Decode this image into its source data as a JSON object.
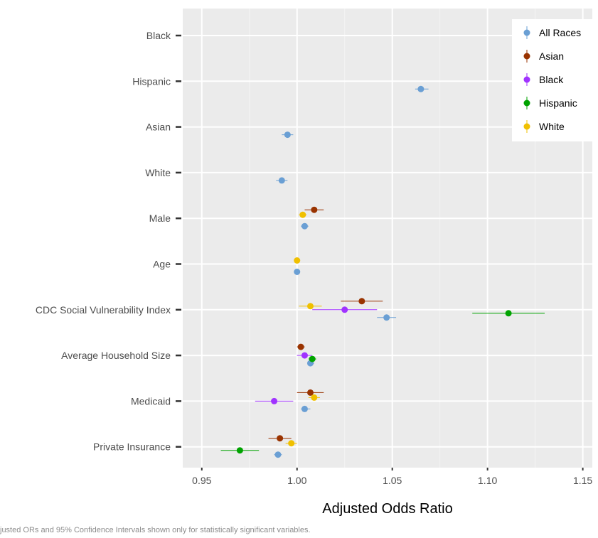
{
  "chart_data": {
    "type": "scatter",
    "subtype": "forest-plot",
    "xlabel": "Adjusted Odds Ratio",
    "ylabel": "",
    "xlim": [
      0.94,
      1.155
    ],
    "xticks": [
      "0.95",
      "1.00",
      "1.05",
      "1.10",
      "1.15"
    ],
    "xtick_values": [
      0.95,
      1.0,
      1.05,
      1.1,
      1.15
    ],
    "categories": [
      "Black",
      "Hispanic",
      "Asian",
      "White",
      "Male",
      "Age",
      "CDC Social Vulnerability Index",
      "Average Household Size",
      "Medicaid",
      "Private Insurance"
    ],
    "grid": true,
    "legend_position": "top-right",
    "series": [
      {
        "name": "All Races",
        "color": "#6a9fd4",
        "points": [
          {
            "category": "Hispanic",
            "or": 1.065,
            "lo": 1.062,
            "hi": 1.069
          },
          {
            "category": "Asian",
            "or": 0.995,
            "lo": 0.992,
            "hi": 0.998
          },
          {
            "category": "White",
            "or": 0.992,
            "lo": 0.989,
            "hi": 0.995
          },
          {
            "category": "Male",
            "or": 1.004,
            "lo": 1.002,
            "hi": 1.006
          },
          {
            "category": "Age",
            "or": 1.0,
            "lo": 0.999,
            "hi": 1.001
          },
          {
            "category": "CDC Social Vulnerability Index",
            "or": 1.047,
            "lo": 1.042,
            "hi": 1.052
          },
          {
            "category": "Average Household Size",
            "or": 1.007,
            "lo": 1.006,
            "hi": 1.009
          },
          {
            "category": "Medicaid",
            "or": 1.004,
            "lo": 1.002,
            "hi": 1.007
          },
          {
            "category": "Private Insurance",
            "or": 0.99,
            "lo": 0.988,
            "hi": 0.992
          }
        ]
      },
      {
        "name": "Asian",
        "color": "#993300",
        "points": [
          {
            "category": "Male",
            "or": 1.009,
            "lo": 1.004,
            "hi": 1.014
          },
          {
            "category": "CDC Social Vulnerability Index",
            "or": 1.034,
            "lo": 1.023,
            "hi": 1.045
          },
          {
            "category": "Average Household Size",
            "or": 1.002,
            "lo": 1.0,
            "hi": 1.004
          },
          {
            "category": "Medicaid",
            "or": 1.007,
            "lo": 1.0,
            "hi": 1.014
          },
          {
            "category": "Private Insurance",
            "or": 0.991,
            "lo": 0.985,
            "hi": 0.997
          }
        ]
      },
      {
        "name": "Black",
        "color": "#a033ff",
        "points": [
          {
            "category": "CDC Social Vulnerability Index",
            "or": 1.025,
            "lo": 1.008,
            "hi": 1.042
          },
          {
            "category": "Average Household Size",
            "or": 1.004,
            "lo": 1.0,
            "hi": 1.008
          },
          {
            "category": "Medicaid",
            "or": 0.988,
            "lo": 0.978,
            "hi": 0.998
          }
        ]
      },
      {
        "name": "Hispanic",
        "color": "#00a300",
        "points": [
          {
            "category": "CDC Social Vulnerability Index",
            "or": 1.111,
            "lo": 1.092,
            "hi": 1.13
          },
          {
            "category": "Average Household Size",
            "or": 1.008,
            "lo": 1.006,
            "hi": 1.01
          },
          {
            "category": "Private Insurance",
            "or": 0.97,
            "lo": 0.96,
            "hi": 0.98
          }
        ]
      },
      {
        "name": "White",
        "color": "#f0c000",
        "points": [
          {
            "category": "Male",
            "or": 1.003,
            "lo": 1.001,
            "hi": 1.005
          },
          {
            "category": "Age",
            "or": 1.0,
            "lo": 0.999,
            "hi": 1.001
          },
          {
            "category": "CDC Social Vulnerability Index",
            "or": 1.007,
            "lo": 1.001,
            "hi": 1.013
          },
          {
            "category": "Medicaid",
            "or": 1.009,
            "lo": 1.006,
            "hi": 1.012
          },
          {
            "category": "Private Insurance",
            "or": 0.997,
            "lo": 0.994,
            "hi": 1.0
          }
        ]
      }
    ],
    "caption": "justed ORs and 95% Confidence Intervals shown only for statistically significant variables."
  }
}
